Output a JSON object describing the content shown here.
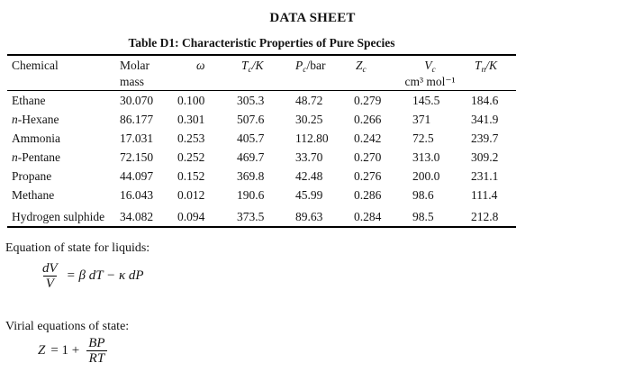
{
  "page": {
    "title": "DATA SHEET"
  },
  "table": {
    "caption": "Table D1: Characteristic Properties of Pure Species",
    "columns": [
      {
        "line1": "Chemical",
        "line2": ""
      },
      {
        "line1": "Molar",
        "line2": "mass"
      },
      {
        "line1": "ω",
        "line2": ""
      },
      {
        "main": "T",
        "sub": "c",
        "rest": "/K"
      },
      {
        "main": "P",
        "sub": "c",
        "rest": "/bar"
      },
      {
        "main": "Z",
        "sub": "c",
        "rest": ""
      },
      {
        "main": "V",
        "sub": "c",
        "rest": "",
        "line2": "cm³ mol⁻¹"
      },
      {
        "main": "T",
        "sub": "n",
        "rest": "/K"
      }
    ],
    "rows": [
      {
        "prefix": "",
        "name": "Ethane",
        "values": [
          "30.070",
          "0.100",
          "305.3",
          "48.72",
          "0.279",
          "145.5",
          "184.6"
        ]
      },
      {
        "prefix": "n",
        "name": "-Hexane",
        "values": [
          "86.177",
          "0.301",
          "507.6",
          "30.25",
          "0.266",
          "371",
          "341.9"
        ]
      },
      {
        "prefix": "",
        "name": "Ammonia",
        "values": [
          "17.031",
          "0.253",
          "405.7",
          "112.80",
          "0.242",
          "72.5",
          "239.7"
        ]
      },
      {
        "prefix": "n",
        "name": "-Pentane",
        "values": [
          "72.150",
          "0.252",
          "469.7",
          "33.70",
          "0.270",
          "313.0",
          "309.2"
        ]
      },
      {
        "prefix": "",
        "name": "Propane",
        "values": [
          "44.097",
          "0.152",
          "369.8",
          "42.48",
          "0.276",
          "200.0",
          "231.1"
        ]
      },
      {
        "prefix": "",
        "name": "Methane",
        "values": [
          "16.043",
          "0.012",
          "190.6",
          "45.99",
          "0.286",
          "98.6",
          "111.4"
        ]
      },
      {
        "prefix": "",
        "name": "Hydrogen sulphide",
        "values": [
          "34.082",
          "0.094",
          "373.5",
          "89.63",
          "0.284",
          "98.5",
          "212.8"
        ]
      }
    ]
  },
  "equations": {
    "liquids": {
      "label": "Equation of state for liquids:",
      "numerator": "dV",
      "denominator": "V",
      "rhs": "= β dT − κ dP"
    },
    "virial": {
      "label": "Virial equations of state:",
      "lhs_variable": "Z",
      "lhs_rest": "= 1 +",
      "numerator": "BP",
      "denominator": "RT"
    }
  }
}
